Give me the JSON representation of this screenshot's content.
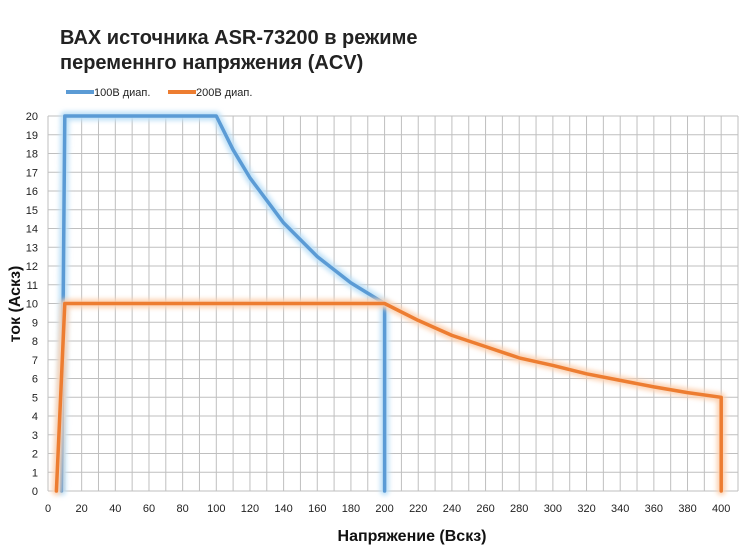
{
  "header": {
    "title_line1": "ВАХ источника ASR-73200 в режиме",
    "title_line2": "переменнго напряжения (ACV)"
  },
  "chart_data": {
    "type": "line",
    "xlabel": "Напряжение (Вскз)",
    "ylabel": "ток (Аскз)",
    "xlim": [
      0,
      410
    ],
    "ylim": [
      0,
      20
    ],
    "x_ticks": [
      0,
      20,
      40,
      60,
      80,
      100,
      120,
      140,
      160,
      180,
      200,
      220,
      240,
      260,
      280,
      300,
      320,
      340,
      360,
      380,
      400
    ],
    "y_ticks": [
      0,
      1,
      2,
      3,
      4,
      5,
      6,
      7,
      8,
      9,
      10,
      11,
      12,
      13,
      14,
      15,
      16,
      17,
      18,
      19,
      20
    ],
    "grid": true,
    "legend_position": "top-left",
    "series": [
      {
        "name": "100В диап.",
        "color": "#5b9bd5",
        "glow": "#bde0f7",
        "points": [
          [
            8,
            0
          ],
          [
            10,
            20
          ],
          [
            100,
            20
          ],
          [
            110,
            18.2
          ],
          [
            120,
            16.7
          ],
          [
            140,
            14.3
          ],
          [
            160,
            12.5
          ],
          [
            180,
            11.1
          ],
          [
            200,
            10
          ],
          [
            200,
            0
          ]
        ]
      },
      {
        "name": "200В диап.",
        "color": "#ed7d31",
        "glow": "#fcd2b2",
        "points": [
          [
            5,
            0
          ],
          [
            10,
            10
          ],
          [
            200,
            10
          ],
          [
            220,
            9.1
          ],
          [
            240,
            8.3
          ],
          [
            260,
            7.7
          ],
          [
            280,
            7.1
          ],
          [
            300,
            6.7
          ],
          [
            320,
            6.25
          ],
          [
            340,
            5.9
          ],
          [
            360,
            5.55
          ],
          [
            380,
            5.25
          ],
          [
            400,
            5
          ],
          [
            400,
            0
          ]
        ]
      }
    ]
  }
}
